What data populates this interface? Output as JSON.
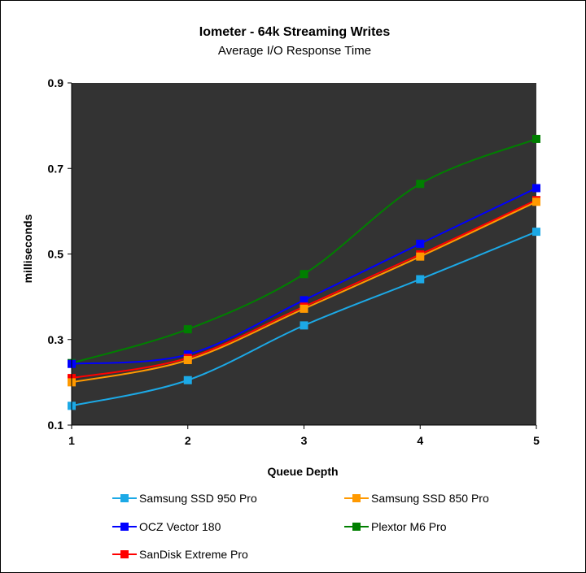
{
  "chart_data": {
    "type": "line",
    "title": "Iometer - 64k Streaming Writes",
    "subtitle": "Average I/O Response Time",
    "xlabel": "Queue Depth",
    "ylabel": "milliseconds",
    "x": [
      1,
      2,
      3,
      4,
      5
    ],
    "xlim": [
      1,
      5
    ],
    "ylim": [
      0.1,
      0.9
    ],
    "yticks": [
      0.1,
      0.3,
      0.5,
      0.7,
      0.9
    ],
    "xtick_labels": [
      "1",
      "2",
      "3",
      "4",
      "5"
    ],
    "ytick_labels": [
      "0.1",
      "0.3",
      "0.5",
      "0.7",
      "0.9"
    ],
    "grid": false,
    "legend_position": "bottom",
    "plot_background": "#333333",
    "series": [
      {
        "name": "Samsung SSD 950 Pro",
        "color": "#1ca9e6",
        "values": [
          0.145,
          0.205,
          0.333,
          0.441,
          0.552
        ]
      },
      {
        "name": "Samsung SSD 850 Pro",
        "color": "#ff9900",
        "values": [
          0.2,
          0.252,
          0.372,
          0.494,
          0.622
        ]
      },
      {
        "name": "OCZ Vector 180",
        "color": "#0000ff",
        "values": [
          0.243,
          0.265,
          0.392,
          0.524,
          0.654
        ]
      },
      {
        "name": "Plextor M6 Pro",
        "color": "#007f00",
        "values": [
          0.245,
          0.324,
          0.453,
          0.664,
          0.769
        ]
      },
      {
        "name": "SanDisk Extreme Pro",
        "color": "#ff0000",
        "values": [
          0.21,
          0.257,
          0.377,
          0.499,
          0.626
        ]
      }
    ]
  }
}
